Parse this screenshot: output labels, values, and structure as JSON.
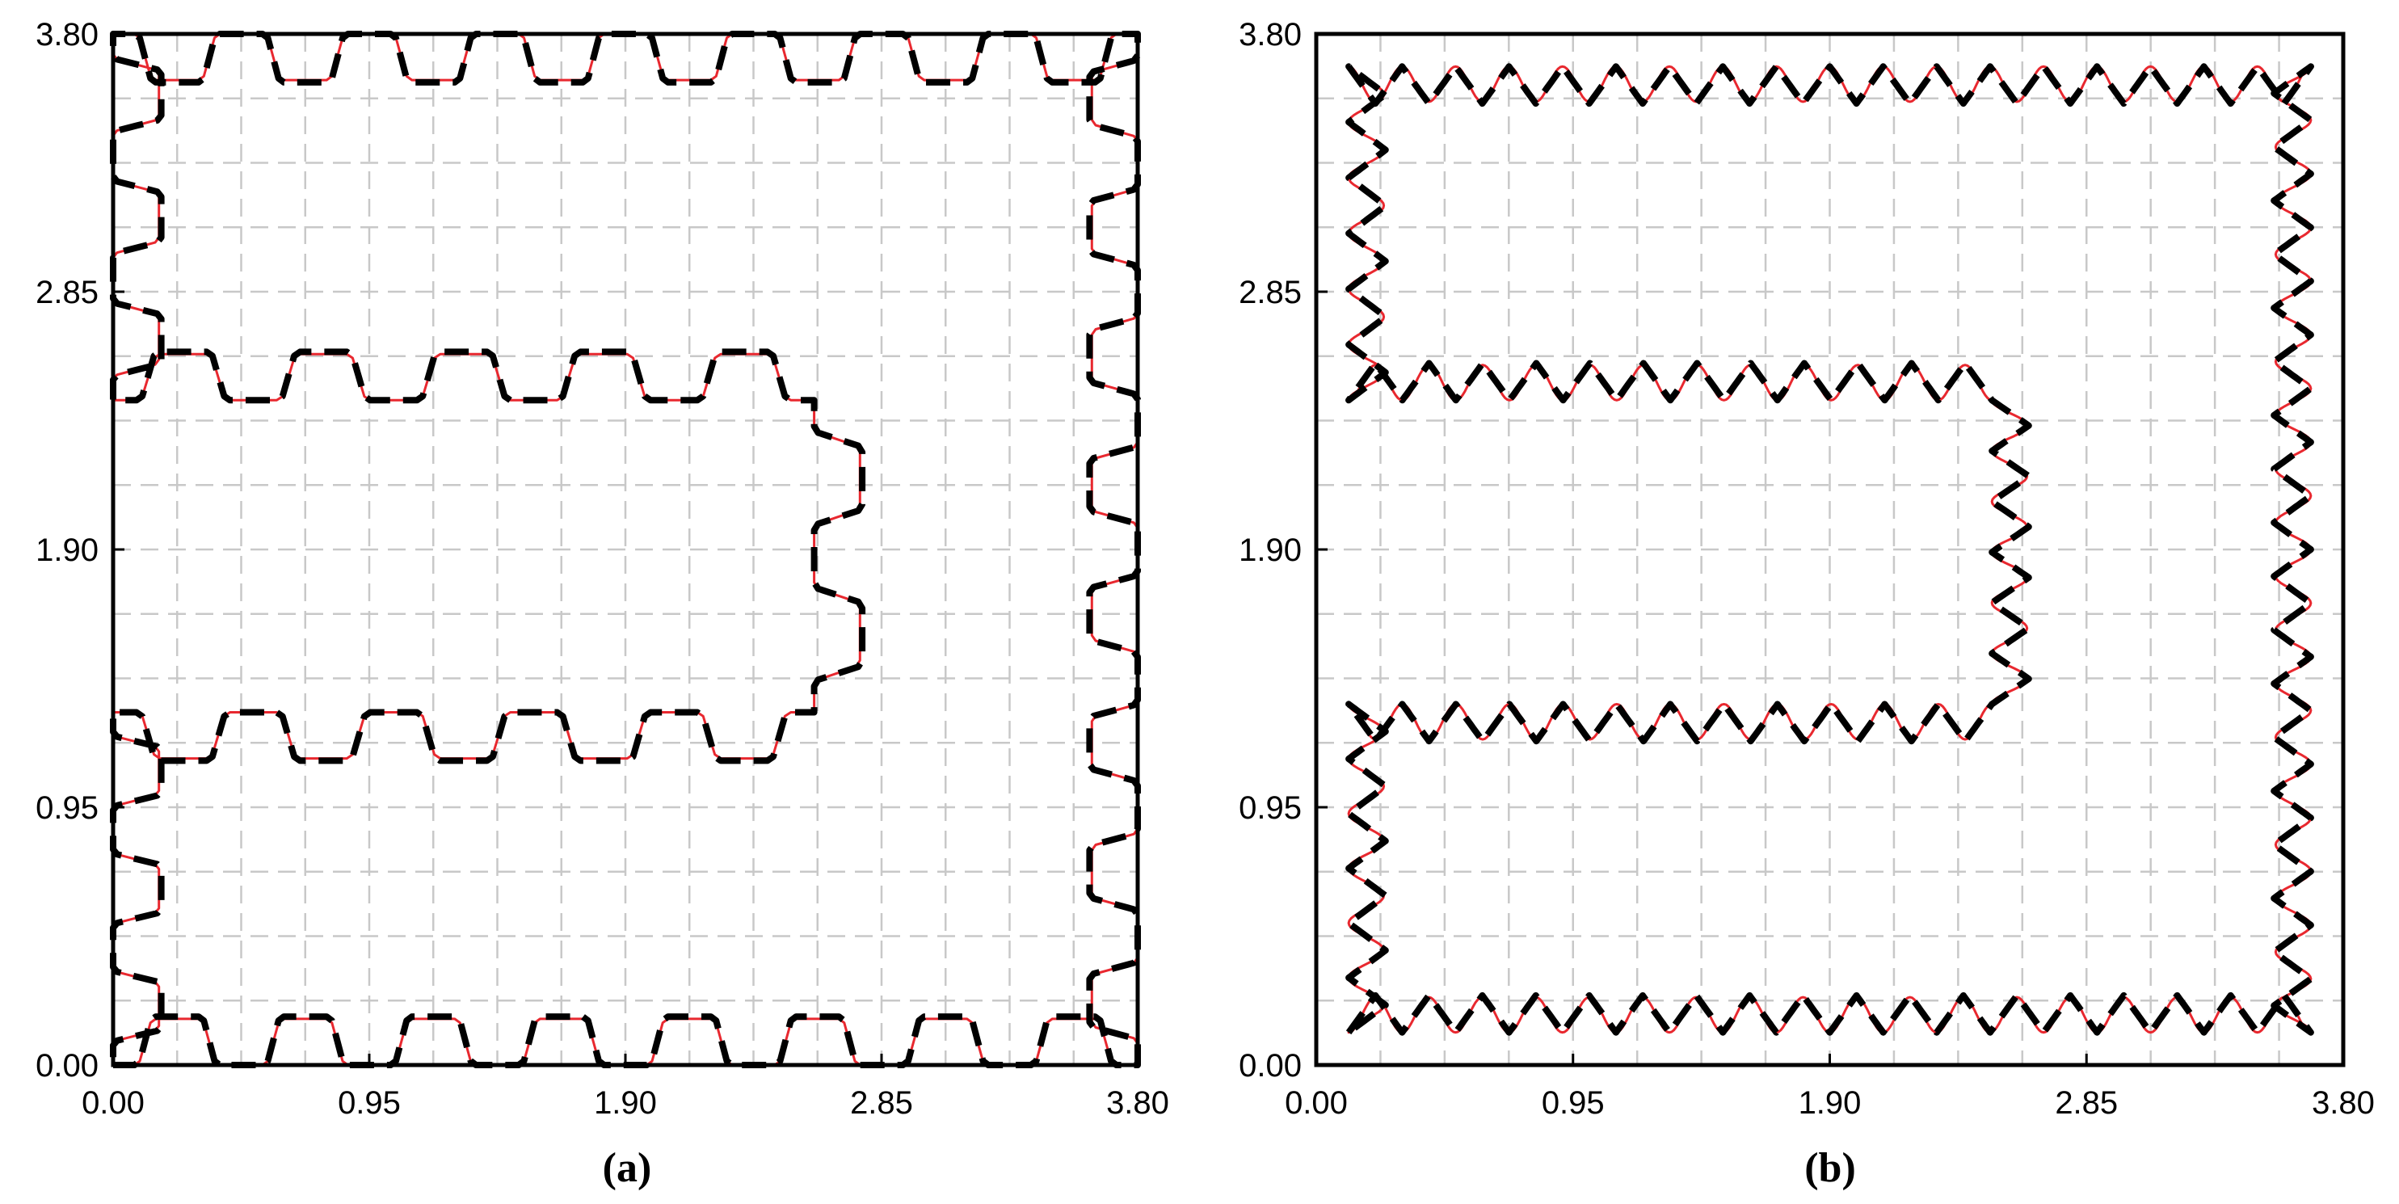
{
  "chart_data": [
    {
      "panel": "(a)",
      "type": "line",
      "x_ticks": [
        "0.00",
        "0.95",
        "1.90",
        "2.85",
        "3.80"
      ],
      "y_ticks": [
        "0.00",
        "0.95",
        "1.90",
        "2.85",
        "3.80"
      ],
      "xlim": [
        0,
        3.8
      ],
      "ylim": [
        0,
        3.8
      ],
      "grid": true,
      "minor_grid_step": 0.2375,
      "series": [
        {
          "style": "dashed",
          "color": "#000000",
          "wave": "square"
        },
        {
          "style": "solid",
          "color": "#e8282f",
          "wave": "square"
        }
      ],
      "path_outline": [
        [
          0.0,
          0.0
        ],
        [
          3.8,
          0.0
        ],
        [
          3.8,
          3.8
        ],
        [
          0.0,
          3.8
        ],
        [
          0.0,
          2.45
        ],
        [
          2.6,
          2.45
        ],
        [
          2.6,
          1.3
        ],
        [
          0.0,
          1.3
        ]
      ],
      "wave_period": 0.475,
      "wave_amplitude": 0.17
    },
    {
      "panel": "(b)",
      "type": "line",
      "x_ticks": [
        "0.00",
        "0.95",
        "1.90",
        "2.85",
        "3.80"
      ],
      "y_ticks": [
        "0.00",
        "0.95",
        "1.90",
        "2.85",
        "3.80"
      ],
      "xlim": [
        0,
        3.8
      ],
      "ylim": [
        0,
        3.8
      ],
      "grid": true,
      "minor_grid_step": 0.2375,
      "series": [
        {
          "style": "dashed",
          "color": "#000000",
          "wave": "zigzag"
        },
        {
          "style": "solid",
          "color": "#e8282f",
          "wave": "sine"
        }
      ],
      "path_outline": [
        [
          0.12,
          0.12
        ],
        [
          3.68,
          0.12
        ],
        [
          3.68,
          3.68
        ],
        [
          0.12,
          3.68
        ],
        [
          0.12,
          2.45
        ],
        [
          2.5,
          2.45
        ],
        [
          2.5,
          1.33
        ],
        [
          0.12,
          1.33
        ]
      ],
      "wave_period": 0.2,
      "wave_amplitude": 0.13
    }
  ],
  "panels": [
    {
      "caption": "(a)"
    },
    {
      "caption": "(b)"
    }
  ]
}
